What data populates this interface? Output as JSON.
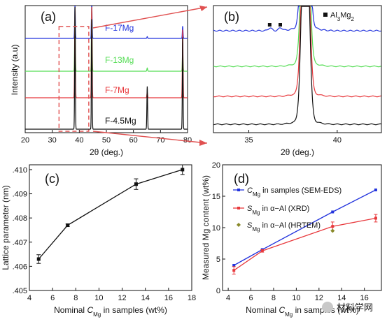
{
  "colors": {
    "blue": "#2233dd",
    "green": "#55dd55",
    "red": "#e8383c",
    "black": "#111111",
    "olive": "#8a8a2a",
    "arrow": "#e05050"
  },
  "chart_data": [
    {
      "panel": "(a)",
      "type": "line",
      "xlabel": "2θ (deg.)",
      "ylabel": "Intensity (a.u)",
      "xlim": [
        20,
        80
      ],
      "xticks": [
        "20",
        "30",
        "40",
        "50",
        "60",
        "70",
        "80"
      ],
      "series": [
        {
          "name": "F-17Mg",
          "color": "#2233dd",
          "peaks": [
            {
              "x": 38.4,
              "h": 1.0
            },
            {
              "x": 44.6,
              "h": 1.0
            },
            {
              "x": 65.1,
              "h": 0.05
            },
            {
              "x": 78.2,
              "h": 0.35
            }
          ]
        },
        {
          "name": "F-13Mg",
          "color": "#55dd55",
          "peaks": [
            {
              "x": 38.4,
              "h": 1.0
            },
            {
              "x": 44.6,
              "h": 1.0
            },
            {
              "x": 65.1,
              "h": 0.05
            },
            {
              "x": 78.2,
              "h": 0.35
            }
          ]
        },
        {
          "name": "F-7Mg",
          "color": "#e8383c",
          "peaks": [
            {
              "x": 38.4,
              "h": 1.0
            },
            {
              "x": 44.6,
              "h": 1.0
            },
            {
              "x": 65.1,
              "h": 0.06
            },
            {
              "x": 78.2,
              "h": 0.75
            }
          ]
        },
        {
          "name": "F-4.5Mg",
          "color": "#111111",
          "peaks": [
            {
              "x": 38.4,
              "h": 1.0
            },
            {
              "x": 44.6,
              "h": 0.9
            },
            {
              "x": 65.1,
              "h": 0.35
            },
            {
              "x": 78.2,
              "h": 0.75
            }
          ]
        }
      ],
      "zoom_box_x": [
        32.5,
        43.5
      ]
    },
    {
      "panel": "(b)",
      "type": "line",
      "xlabel": "2θ (deg.)",
      "xlim": [
        33,
        42.5
      ],
      "xticks": [
        "35",
        "40"
      ],
      "legend": "Al3Mg2",
      "marker_positions": [
        36.2,
        36.8
      ],
      "peak_x": 38.2
    },
    {
      "panel": "(c)",
      "type": "line",
      "xlabel_prefix": "Nominal ",
      "xlabel_sym": "C",
      "xlabel_sub": "Mg",
      "xlabel_suffix": " in samples (wt%)",
      "ylabel": "Lattice parameter (nm)",
      "xlim": [
        4,
        18
      ],
      "ylim": [
        0.405,
        0.4102
      ],
      "xticks": [
        "4",
        "6",
        "8",
        "10",
        "12",
        "14",
        "16",
        "18"
      ],
      "yticks": [
        ".405",
        ".406",
        ".407",
        ".408",
        ".409",
        ".410"
      ],
      "x": [
        4.8,
        7.3,
        13.2,
        17.2
      ],
      "y": [
        0.4063,
        0.4077,
        0.4094,
        0.41
      ],
      "yerr": [
        0.00018,
        5e-05,
        0.00022,
        0.0002
      ]
    },
    {
      "panel": "(d)",
      "type": "line",
      "xlabel_prefix": "Nominal ",
      "xlabel_sym": "C",
      "xlabel_sub": "Mg",
      "xlabel_suffix": " in samples (wt%)",
      "ylabel": "Measured Mg content (wt%)",
      "xlim": [
        3.5,
        17.5
      ],
      "ylim": [
        0,
        20
      ],
      "xticks": [
        "4",
        "6",
        "8",
        "10",
        "12",
        "14",
        "16"
      ],
      "yticks": [
        "0",
        "5",
        "10",
        "15",
        "20"
      ],
      "series": [
        {
          "name_sym": "C",
          "name_sub": "Mg",
          "name_rest": " in samples (SEM-EDS)",
          "color": "#2233dd",
          "marker": "square",
          "x": [
            4.5,
            7.0,
            13.2,
            17.0
          ],
          "y": [
            4.0,
            6.5,
            12.5,
            16.0
          ],
          "yerr": [
            0,
            0,
            0,
            0
          ]
        },
        {
          "name_sym": "S",
          "name_sub": "Mg",
          "name_rest": " in α−Al (XRD)",
          "color": "#e8383c",
          "marker": "square",
          "x": [
            4.5,
            7.0,
            13.2,
            17.0
          ],
          "y": [
            3.2,
            6.3,
            10.2,
            11.5
          ],
          "yerr": [
            0.6,
            0.2,
            0.7,
            0.6
          ]
        },
        {
          "name_sym": "S",
          "name_sub": "Mg",
          "name_rest": " in α−Al (HRTEM)",
          "color": "#8a8a2a",
          "marker": "diamond",
          "x": [
            13.2
          ],
          "y": [
            9.5
          ],
          "yerr": [
            0
          ]
        }
      ]
    }
  ],
  "watermark": "材料学网"
}
